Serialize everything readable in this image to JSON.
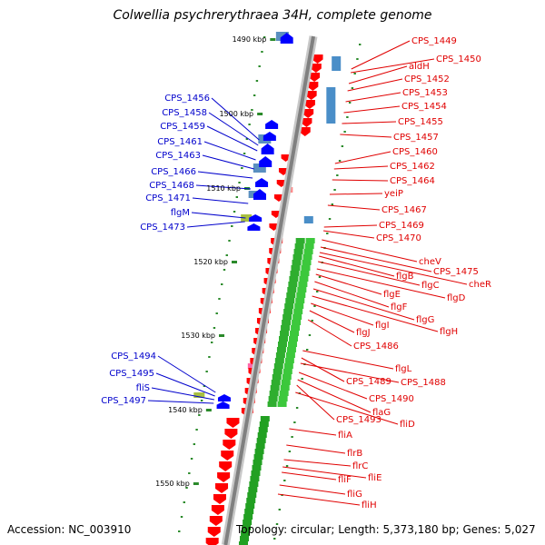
{
  "title": "Colwellia psychrerythraea 34H, complete genome",
  "footer": {
    "accession": "Accession: NC_003910",
    "summary": "Topology: circular; Length: 5,373,180 bp; Genes: 5,027"
  },
  "colors": {
    "reverse_gene": "#ff0000",
    "forward_gene": "#0000ff",
    "reverse_label": "#e00000",
    "forward_label": "#0000cc",
    "backbone": "#808080",
    "tick": "#2a8a2a"
  },
  "scale_labels": [
    "1490 kbp",
    "1500 kbp",
    "1510 kbp",
    "1520 kbp",
    "1530 kbp",
    "1540 kbp",
    "1550 kbp"
  ],
  "right_labels": [
    "CPS_1449",
    "CPS_1450",
    "aldH",
    "CPS_1452",
    "CPS_1453",
    "CPS_1454",
    "CPS_1455",
    "CPS_1457",
    "CPS_1460",
    "CPS_1462",
    "CPS_1464",
    "yeiP",
    "CPS_1467",
    "CPS_1469",
    "CPS_1470",
    "cheV",
    "CPS_1475",
    "cheR",
    "flgB",
    "flgC",
    "flgD",
    "flgE",
    "flgF",
    "flgG",
    "flgH",
    "flgI",
    "flgJ",
    "CPS_1486",
    "flgL",
    "CPS_1489",
    "CPS_1488",
    "CPS_1490",
    "flaG",
    "CPS_1493",
    "fliD",
    "fliA",
    "flrB",
    "flrC",
    "fliE",
    "fliF",
    "fliG",
    "fliH"
  ],
  "left_labels": [
    "CPS_1456",
    "CPS_1458",
    "CPS_1459",
    "CPS_1461",
    "CPS_1463",
    "CPS_1466",
    "CPS_1468",
    "CPS_1471",
    "flgM",
    "CPS_1473",
    "CPS_1494",
    "CPS_1495",
    "fliS",
    "CPS_1497"
  ]
}
